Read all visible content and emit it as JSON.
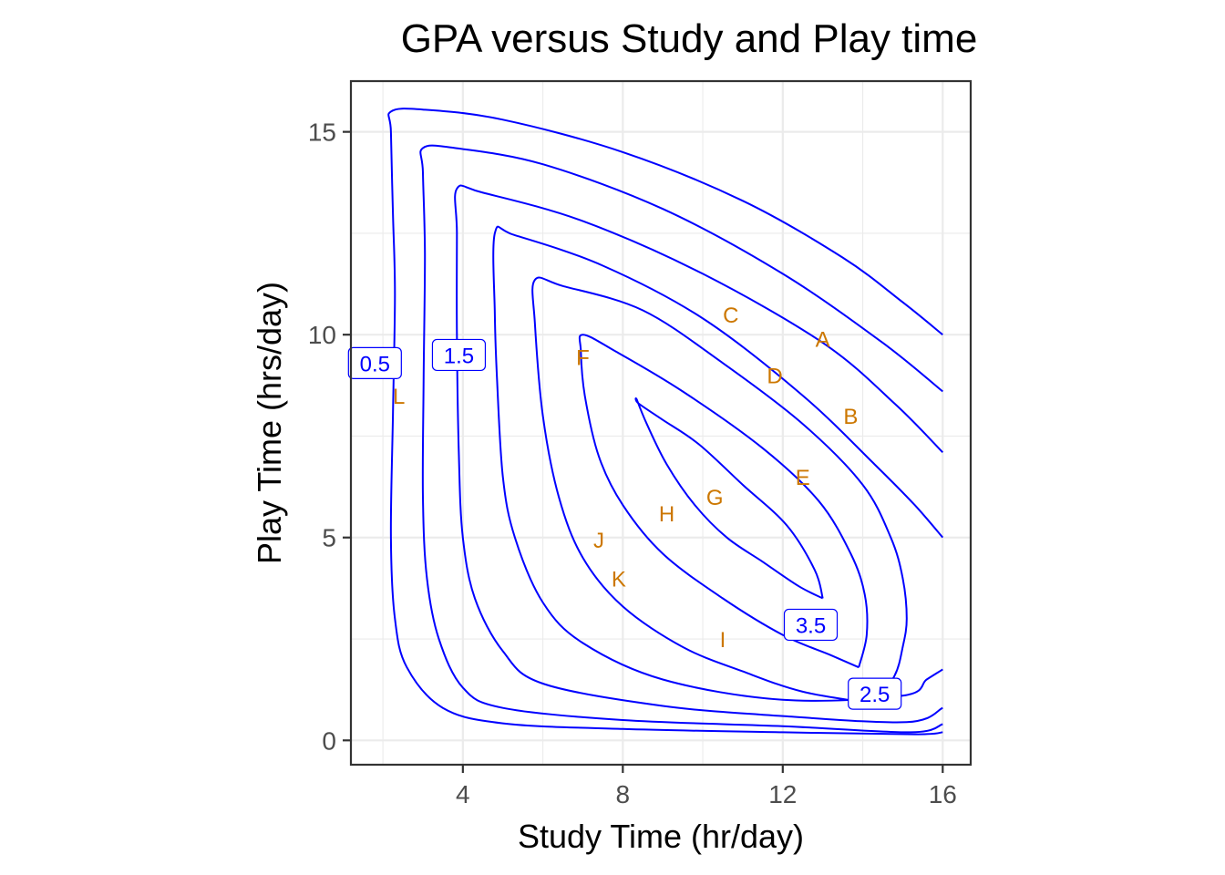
{
  "chart_data": {
    "type": "contour",
    "title": "GPA versus Study and Play time",
    "xlabel": "Study Time (hr/day)",
    "ylabel": "Play Time (hrs/day)",
    "xlim": [
      1.2,
      16.7
    ],
    "ylim": [
      -0.6,
      16.25
    ],
    "x_ticks": [
      4,
      8,
      12,
      16
    ],
    "y_ticks": [
      0,
      5,
      10,
      15
    ],
    "grid": true,
    "contour_color": "#0000ff",
    "point_label_color": "#cc7700",
    "contours": [
      {
        "level": "0.5",
        "points": [
          [
            16,
            0.2
          ],
          [
            15.3,
            0.15
          ],
          [
            12,
            0.2
          ],
          [
            8,
            0.28
          ],
          [
            5,
            0.42
          ],
          [
            3.5,
            0.8
          ],
          [
            2.6,
            1.8
          ],
          [
            2.3,
            3
          ],
          [
            2.2,
            5
          ],
          [
            2.25,
            8
          ],
          [
            2.3,
            11
          ],
          [
            2.25,
            13
          ],
          [
            2.2,
            15
          ],
          [
            2.2,
            15.5
          ],
          [
            3,
            15.55
          ],
          [
            5,
            15.3
          ],
          [
            8,
            14.5
          ],
          [
            11,
            13.3
          ],
          [
            13.5,
            11.9
          ],
          [
            15,
            10.8
          ],
          [
            16,
            10
          ]
        ]
      },
      {
        "level": null,
        "points": [
          [
            16,
            0.4
          ],
          [
            15.2,
            0.2
          ],
          [
            12,
            0.35
          ],
          [
            8,
            0.5
          ],
          [
            5,
            0.8
          ],
          [
            4,
            1.3
          ],
          [
            3.4,
            2.5
          ],
          [
            3.1,
            4
          ],
          [
            3,
            6
          ],
          [
            3.02,
            9
          ],
          [
            3.05,
            12
          ],
          [
            3,
            14
          ],
          [
            3,
            14.6
          ],
          [
            3.8,
            14.6
          ],
          [
            6,
            14.2
          ],
          [
            9,
            13.1
          ],
          [
            12,
            11.5
          ],
          [
            14.5,
            9.8
          ],
          [
            16,
            8.6
          ]
        ]
      },
      {
        "level": "1.5",
        "points": [
          [
            16,
            0.8
          ],
          [
            15.1,
            0.45
          ],
          [
            12,
            0.6
          ],
          [
            9,
            0.85
          ],
          [
            6,
            1.4
          ],
          [
            5,
            2.2
          ],
          [
            4.3,
            3.5
          ],
          [
            4,
            5
          ],
          [
            3.9,
            7
          ],
          [
            3.85,
            10
          ],
          [
            3.85,
            12.5
          ],
          [
            3.85,
            13.6
          ],
          [
            4.5,
            13.5
          ],
          [
            7,
            12.8
          ],
          [
            10,
            11.5
          ],
          [
            13,
            9.8
          ],
          [
            14.8,
            8.3
          ],
          [
            16,
            7.1
          ]
        ]
      },
      {
        "level": null,
        "points": [
          [
            16,
            1.75
          ],
          [
            15.6,
            1.5
          ],
          [
            15,
            1.1
          ],
          [
            12,
            1
          ],
          [
            9,
            1.5
          ],
          [
            7,
            2.4
          ],
          [
            6,
            3.4
          ],
          [
            5.3,
            5
          ],
          [
            5,
            6.5
          ],
          [
            4.85,
            9
          ],
          [
            4.8,
            10.5
          ],
          [
            4.8,
            12.5
          ],
          [
            5.3,
            12.45
          ],
          [
            7.5,
            11.7
          ],
          [
            10,
            10.4
          ],
          [
            12.5,
            8.5
          ],
          [
            14.3,
            6.8
          ],
          [
            15.3,
            5.8
          ],
          [
            16,
            5
          ]
        ]
      },
      {
        "level": "2.5",
        "points": [
          [
            14.3,
            0.9
          ],
          [
            14.8,
            1.6
          ],
          [
            15,
            2.3
          ],
          [
            15.1,
            3
          ],
          [
            15,
            4
          ],
          [
            14.7,
            5
          ],
          [
            14,
            6.3
          ],
          [
            12.5,
            7.8
          ],
          [
            10.5,
            9.3
          ],
          [
            8.5,
            10.6
          ],
          [
            6.5,
            11.2
          ],
          [
            5.8,
            11.35
          ],
          [
            5.8,
            10.3
          ],
          [
            6,
            8
          ],
          [
            6.4,
            6
          ],
          [
            7,
            4.5
          ],
          [
            8,
            3.3
          ],
          [
            9.5,
            2.3
          ],
          [
            11,
            1.7
          ],
          [
            12.5,
            1.2
          ],
          [
            14.3,
            0.9
          ]
        ]
      },
      {
        "level": null,
        "points": [
          [
            13.9,
            1.8
          ],
          [
            14.1,
            2.6
          ],
          [
            14.05,
            3.6
          ],
          [
            13.7,
            4.6
          ],
          [
            12.9,
            5.9
          ],
          [
            11.5,
            7.2
          ],
          [
            9.5,
            8.6
          ],
          [
            7.8,
            9.6
          ],
          [
            7,
            10
          ],
          [
            6.95,
            9.6
          ],
          [
            7.05,
            8.5
          ],
          [
            7.4,
            7
          ],
          [
            8,
            5.8
          ],
          [
            9,
            4.6
          ],
          [
            10.5,
            3.5
          ],
          [
            12,
            2.6
          ],
          [
            13.2,
            2.1
          ],
          [
            13.9,
            1.8
          ]
        ]
      },
      {
        "level": "3.5",
        "points": [
          [
            13,
            3.5
          ],
          [
            12.8,
            4.2
          ],
          [
            12.1,
            5.3
          ],
          [
            11,
            6.3
          ],
          [
            9.9,
            7.3
          ],
          [
            9,
            7.9
          ],
          [
            8.4,
            8.3
          ],
          [
            8.35,
            8.4
          ],
          [
            8.6,
            7.8
          ],
          [
            9.1,
            6.8
          ],
          [
            9.8,
            5.8
          ],
          [
            10.6,
            5
          ],
          [
            11.5,
            4.4
          ],
          [
            12.4,
            3.8
          ],
          [
            13,
            3.5
          ]
        ]
      }
    ],
    "level_labels": [
      {
        "text": "0.5",
        "x": 1.8,
        "y": 9.3
      },
      {
        "text": "1.5",
        "x": 3.9,
        "y": 9.5
      },
      {
        "text": "2.5",
        "x": 14.3,
        "y": 1.15
      },
      {
        "text": "3.5",
        "x": 12.7,
        "y": 2.85
      }
    ],
    "points": [
      {
        "label": "A",
        "x": 13,
        "y": 9.9
      },
      {
        "label": "B",
        "x": 13.7,
        "y": 8.0
      },
      {
        "label": "C",
        "x": 10.7,
        "y": 10.5
      },
      {
        "label": "D",
        "x": 11.8,
        "y": 9.0
      },
      {
        "label": "E",
        "x": 12.5,
        "y": 6.5
      },
      {
        "label": "F",
        "x": 7.0,
        "y": 9.45
      },
      {
        "label": "G",
        "x": 10.3,
        "y": 6.0
      },
      {
        "label": "H",
        "x": 9.1,
        "y": 5.6
      },
      {
        "label": "I",
        "x": 10.5,
        "y": 2.5
      },
      {
        "label": "J",
        "x": 7.4,
        "y": 4.95
      },
      {
        "label": "K",
        "x": 7.9,
        "y": 4.0
      },
      {
        "label": "L",
        "x": 2.4,
        "y": 8.5
      }
    ]
  }
}
